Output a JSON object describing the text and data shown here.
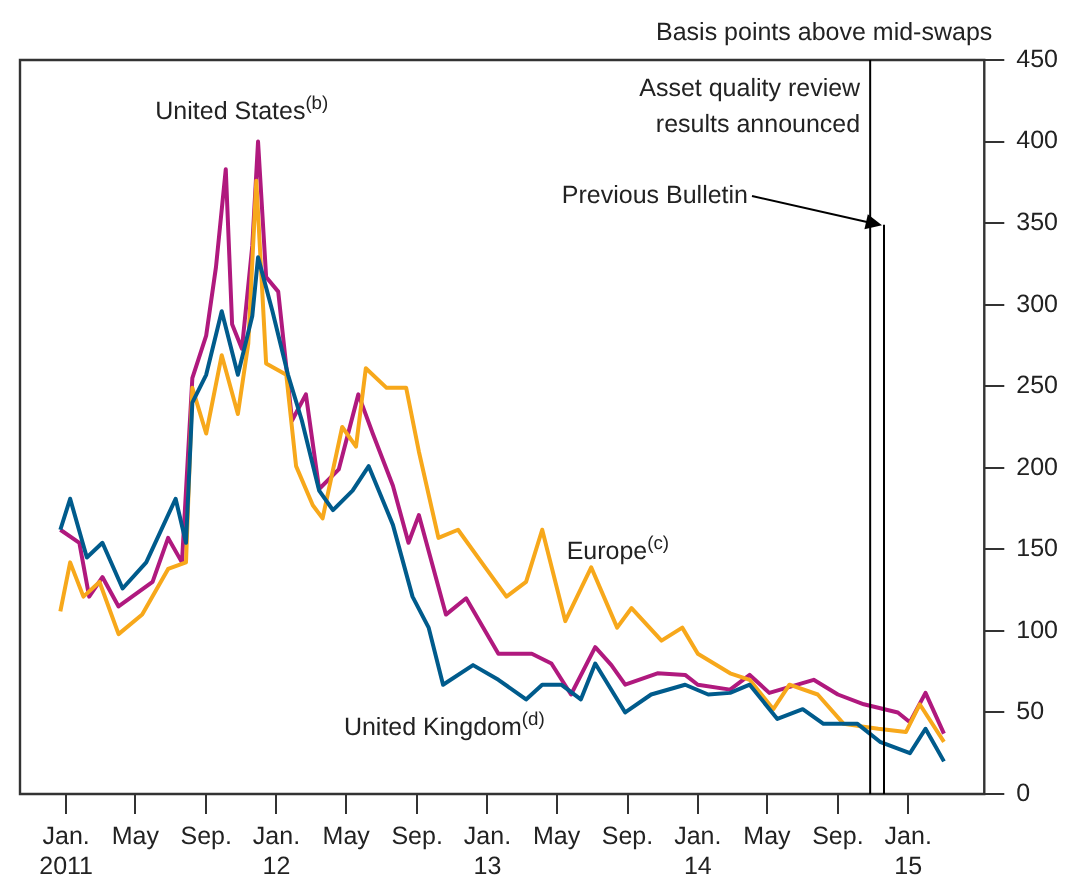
{
  "chart_data": {
    "type": "line",
    "ylabel": "Basis points above mid-swaps",
    "xlim": [
      "2010-10-13",
      "2015-05-13"
    ],
    "xticks": [
      {
        "value": "2011-01-01",
        "label": "Jan.\n2011"
      },
      {
        "value": "2011-05-01",
        "label": "May"
      },
      {
        "value": "2011-09-01",
        "label": "Sep."
      },
      {
        "value": "2012-01-01",
        "label": "Jan.\n12"
      },
      {
        "value": "2012-05-01",
        "label": "May"
      },
      {
        "value": "2012-09-01",
        "label": "Sep."
      },
      {
        "value": "2013-01-01",
        "label": "Jan.\n13"
      },
      {
        "value": "2013-05-01",
        "label": "May"
      },
      {
        "value": "2013-09-01",
        "label": "Sep."
      },
      {
        "value": "2014-01-01",
        "label": "Jan.\n14"
      },
      {
        "value": "2014-05-01",
        "label": "May"
      },
      {
        "value": "2014-09-01",
        "label": "Sep."
      },
      {
        "value": "2015-01-01",
        "label": "Jan.\n15"
      }
    ],
    "ylim": [
      0,
      450
    ],
    "yticks": [
      0,
      50,
      100,
      150,
      200,
      250,
      300,
      350,
      400,
      450
    ],
    "grid": false,
    "legend": false,
    "marker": "none",
    "line_style": "solid",
    "ref_lines": [
      {
        "axis": "x",
        "value": "2014-10-27",
        "label": "Asset quality review\nresults announced",
        "color": "#000000"
      },
      {
        "axis": "x",
        "value": "2014-11-20",
        "color": "#000000"
      }
    ],
    "annotations": [
      {
        "text": "Previous Bulletin",
        "x": "2014-11-20",
        "y": 349
      }
    ],
    "series": [
      {
        "name": "United States$^{(b)}$",
        "color": "#b0197e",
        "x": [
          "2010-12-22",
          "2011-01-24",
          "2011-02-10",
          "2011-03-05",
          "2011-04-02",
          "2011-05-31",
          "2011-06-27",
          "2011-07-21",
          "2011-08-08",
          "2011-09-01",
          "2011-09-18",
          "2011-10-05",
          "2011-10-16",
          "2011-11-02",
          "2011-11-20",
          "2011-11-30",
          "2011-12-14",
          "2012-01-04",
          "2012-01-28",
          "2012-02-21",
          "2012-03-15",
          "2012-04-18",
          "2012-05-22",
          "2012-06-16",
          "2012-07-21",
          "2012-08-17",
          "2012-09-04",
          "2012-10-21",
          "2012-11-25",
          "2013-01-20",
          "2013-03-19",
          "2013-04-22",
          "2013-05-26",
          "2013-07-07",
          "2013-08-04",
          "2013-08-28",
          "2013-10-23",
          "2013-12-10",
          "2014-01-01",
          "2014-02-26",
          "2014-04-01",
          "2014-05-05",
          "2014-07-21",
          "2014-09-01",
          "2014-10-16",
          "2014-12-14",
          "2015-01-04",
          "2015-01-31",
          "2015-03-04"
        ],
        "values": [
          162,
          154,
          121,
          133,
          115,
          130,
          157,
          142,
          255,
          281,
          323,
          383,
          288,
          273,
          336,
          400,
          317,
          308,
          229,
          245,
          187,
          199,
          245,
          221,
          189,
          154,
          171,
          110,
          120,
          86,
          86,
          80,
          61,
          90,
          79,
          67,
          74,
          73,
          67,
          64,
          73,
          62,
          70,
          61,
          55,
          50,
          44,
          62,
          37
        ]
      },
      {
        "name": "Europe$^{(c)}$",
        "color": "#f7a81b",
        "x": [
          "2010-12-22",
          "2011-01-08",
          "2011-01-31",
          "2011-02-28",
          "2011-04-02",
          "2011-05-13",
          "2011-06-27",
          "2011-07-28",
          "2011-08-08",
          "2011-09-01",
          "2011-09-28",
          "2011-10-26",
          "2011-11-13",
          "2011-11-27",
          "2011-12-14",
          "2012-01-18",
          "2012-02-04",
          "2012-03-04",
          "2012-03-21",
          "2012-04-24",
          "2012-05-18",
          "2012-06-04",
          "2012-07-10",
          "2012-08-13",
          "2012-09-04",
          "2012-10-08",
          "2012-11-11",
          "2012-12-30",
          "2013-02-03",
          "2013-03-09",
          "2013-04-06",
          "2013-05-16",
          "2013-06-30",
          "2013-08-14",
          "2013-09-08",
          "2013-10-30",
          "2013-12-05",
          "2014-01-01",
          "2014-02-26",
          "2014-04-01",
          "2014-05-12",
          "2014-06-09",
          "2014-07-28",
          "2014-09-11",
          "2014-11-10",
          "2014-12-28",
          "2015-01-21",
          "2015-03-04"
        ],
        "values": [
          112,
          142,
          121,
          130,
          98,
          110,
          138,
          142,
          249,
          221,
          269,
          233,
          276,
          376,
          264,
          257,
          201,
          177,
          169,
          225,
          213,
          261,
          249,
          249,
          210,
          157,
          162,
          138,
          121,
          130,
          162,
          106,
          139,
          102,
          114,
          94,
          102,
          86,
          74,
          70,
          52,
          67,
          61,
          43,
          40,
          38,
          55,
          32
        ]
      },
      {
        "name": "United Kingdom$^{(d)}$",
        "color": "#005b8c",
        "x": [
          "2010-12-22",
          "2011-01-08",
          "2011-02-06",
          "2011-03-05",
          "2011-04-09",
          "2011-05-20",
          "2011-07-10",
          "2011-07-28",
          "2011-08-08",
          "2011-09-01",
          "2011-09-28",
          "2011-10-26",
          "2011-11-20",
          "2011-11-30",
          "2011-12-25",
          "2012-01-21",
          "2012-02-14",
          "2012-03-15",
          "2012-04-08",
          "2012-05-12",
          "2012-06-09",
          "2012-07-21",
          "2012-08-24",
          "2012-09-21",
          "2012-10-16",
          "2012-12-07",
          "2013-01-20",
          "2013-03-09",
          "2013-04-06",
          "2013-05-09",
          "2013-06-12",
          "2013-07-07",
          "2013-08-28",
          "2013-10-12",
          "2013-12-10",
          "2014-01-19",
          "2014-02-26",
          "2014-04-01",
          "2014-05-19",
          "2014-07-02",
          "2014-08-07",
          "2014-10-05",
          "2014-11-13",
          "2015-01-04",
          "2015-01-31",
          "2015-03-04"
        ],
        "values": [
          162,
          181,
          145,
          154,
          126,
          142,
          181,
          154,
          240,
          257,
          296,
          257,
          293,
          329,
          296,
          257,
          229,
          186,
          174,
          186,
          201,
          165,
          121,
          102,
          67,
          79,
          70,
          58,
          67,
          67,
          58,
          80,
          50,
          61,
          67,
          61,
          62,
          67,
          46,
          52,
          43,
          43,
          32,
          25,
          40,
          20
        ]
      }
    ]
  }
}
